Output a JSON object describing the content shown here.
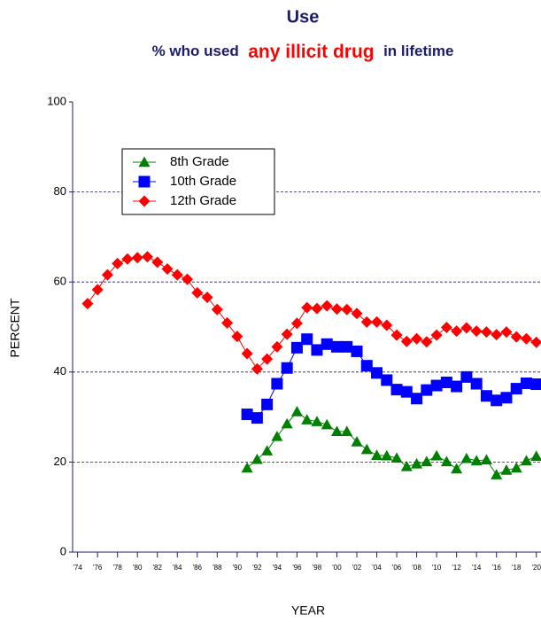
{
  "chart_data": {
    "type": "line",
    "title": "Use",
    "subtitle": [
      "% who used",
      "any illicit drug",
      "in lifetime"
    ],
    "xlabel": "YEAR",
    "ylabel": "PERCENT",
    "x": [
      1975,
      1976,
      1977,
      1978,
      1979,
      1980,
      1981,
      1982,
      1983,
      1984,
      1985,
      1986,
      1987,
      1988,
      1989,
      1990,
      1991,
      1992,
      1993,
      1994,
      1995,
      1996,
      1997,
      1998,
      1999,
      2000,
      2001,
      2002,
      2003,
      2004,
      2005,
      2006,
      2007,
      2008,
      2009,
      2010,
      2011,
      2012,
      2013,
      2014,
      2015,
      2016,
      2017,
      2018,
      2019,
      2020
    ],
    "series": [
      {
        "name": "8th Grade",
        "color": "#008000",
        "marker": "triangle",
        "values": [
          null,
          null,
          null,
          null,
          null,
          null,
          null,
          null,
          null,
          null,
          null,
          null,
          null,
          null,
          null,
          null,
          18.7,
          20.6,
          22.5,
          25.7,
          28.5,
          31.2,
          29.4,
          29.0,
          28.3,
          26.8,
          26.8,
          24.5,
          22.8,
          21.5,
          21.4,
          20.9,
          19.0,
          19.6,
          20.1,
          21.4,
          20.1,
          18.5,
          20.8,
          20.3,
          20.5,
          17.2,
          18.2,
          18.7,
          20.3,
          21.3
        ]
      },
      {
        "name": "10th Grade",
        "color": "#0000ff",
        "marker": "square",
        "values": [
          null,
          null,
          null,
          null,
          null,
          null,
          null,
          null,
          null,
          null,
          null,
          null,
          null,
          null,
          null,
          null,
          30.6,
          29.8,
          32.8,
          37.4,
          40.9,
          45.4,
          47.3,
          44.9,
          46.2,
          45.6,
          45.6,
          44.6,
          41.4,
          39.8,
          38.2,
          36.1,
          35.6,
          34.1,
          36.0,
          37.0,
          37.7,
          36.8,
          38.9,
          37.4,
          34.7,
          33.7,
          34.3,
          36.3,
          37.5,
          37.3
        ]
      },
      {
        "name": "12th Grade",
        "color": "#ff0000",
        "marker": "diamond",
        "values": [
          55.2,
          58.3,
          61.6,
          64.1,
          65.1,
          65.4,
          65.6,
          64.4,
          62.9,
          61.6,
          60.6,
          57.6,
          56.6,
          53.9,
          50.9,
          47.9,
          44.1,
          40.7,
          42.9,
          45.6,
          48.4,
          50.8,
          54.3,
          54.1,
          54.7,
          54.0,
          53.9,
          53.0,
          51.1,
          51.1,
          50.4,
          48.2,
          46.8,
          47.4,
          46.7,
          48.2,
          49.9,
          49.1,
          49.8,
          49.1,
          48.9,
          48.3,
          48.9,
          47.8,
          47.4,
          46.6
        ]
      }
    ],
    "xlim": [
      1973.5,
      2021
    ],
    "xticks": [
      {
        "value": 1974,
        "label": "'74"
      },
      {
        "value": 1976,
        "label": "'76"
      },
      {
        "value": 1978,
        "label": "'78"
      },
      {
        "value": 1980,
        "label": "'80"
      },
      {
        "value": 1982,
        "label": "'82"
      },
      {
        "value": 1984,
        "label": "'84"
      },
      {
        "value": 1986,
        "label": "'86"
      },
      {
        "value": 1988,
        "label": "'88"
      },
      {
        "value": 1990,
        "label": "'90"
      },
      {
        "value": 1992,
        "label": "'92"
      },
      {
        "value": 1994,
        "label": "'94"
      },
      {
        "value": 1996,
        "label": "'96"
      },
      {
        "value": 1998,
        "label": "'98"
      },
      {
        "value": 2000,
        "label": "'00"
      },
      {
        "value": 2002,
        "label": "'02"
      },
      {
        "value": 2004,
        "label": "'04"
      },
      {
        "value": 2006,
        "label": "'06"
      },
      {
        "value": 2008,
        "label": "'08"
      },
      {
        "value": 2010,
        "label": "'10"
      },
      {
        "value": 2012,
        "label": "'12"
      },
      {
        "value": 2014,
        "label": "'14"
      },
      {
        "value": 2016,
        "label": "'16"
      },
      {
        "value": 2018,
        "label": "'18"
      },
      {
        "value": 2020,
        "label": "'20"
      }
    ],
    "ylim": [
      0,
      100
    ],
    "yticks": [
      0,
      20,
      40,
      60,
      80,
      100
    ],
    "grid": true,
    "legend": "upper left"
  }
}
